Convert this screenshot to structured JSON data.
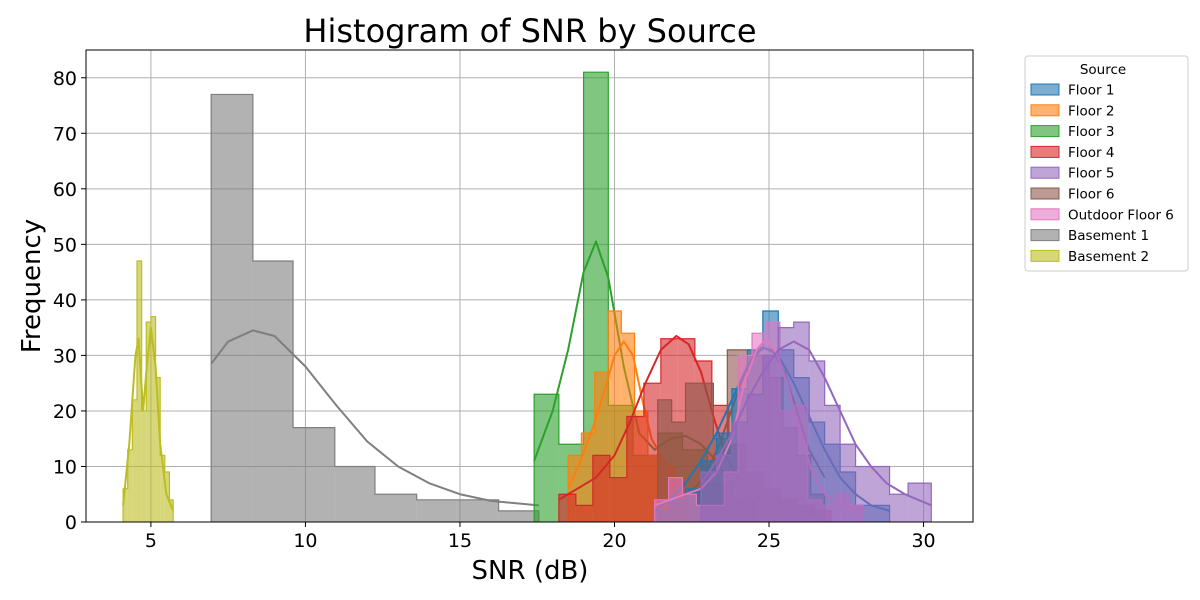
{
  "chart_data": {
    "type": "histogram",
    "title": "Histogram of SNR by Source",
    "xlabel": "SNR (dB)",
    "ylabel": "Frequency",
    "xlim": [
      2.9,
      31.6
    ],
    "ylim": [
      0,
      85
    ],
    "xticks": [
      5,
      10,
      15,
      20,
      25,
      30
    ],
    "yticks": [
      0,
      10,
      20,
      30,
      40,
      50,
      60,
      70,
      80
    ],
    "grid": true,
    "legend": {
      "title": "Source",
      "placement": "outside-top-right"
    },
    "series": [
      {
        "name": "Basement 2",
        "color": "#bcbd22",
        "edges": [
          4.1,
          4.25,
          4.4,
          4.55,
          4.7,
          4.85,
          5.0,
          5.15,
          5.3,
          5.45,
          5.6,
          5.72
        ],
        "counts": [
          6,
          13,
          22,
          47,
          20,
          36,
          37,
          26,
          12,
          9,
          4
        ],
        "kde": [
          [
            4.1,
            3
          ],
          [
            4.3,
            14
          ],
          [
            4.5,
            30
          ],
          [
            4.6,
            33
          ],
          [
            4.75,
            20
          ],
          [
            4.85,
            27
          ],
          [
            5.0,
            35
          ],
          [
            5.15,
            28
          ],
          [
            5.3,
            14
          ],
          [
            5.5,
            5
          ],
          [
            5.72,
            2
          ]
        ]
      },
      {
        "name": "Basement 1",
        "color": "#7f7f7f",
        "edges": [
          6.95,
          8.3,
          9.6,
          10.95,
          12.25,
          13.6,
          14.9,
          16.25,
          17.55
        ],
        "counts": [
          77,
          47,
          17,
          10,
          5,
          4,
          4,
          2
        ],
        "kde": [
          [
            6.95,
            28.5
          ],
          [
            7.5,
            32.5
          ],
          [
            8.3,
            34.5
          ],
          [
            9.0,
            33.5
          ],
          [
            10.0,
            28
          ],
          [
            11.0,
            21
          ],
          [
            12.0,
            14.5
          ],
          [
            13.0,
            10
          ],
          [
            14.0,
            7
          ],
          [
            15.0,
            5
          ],
          [
            16.0,
            3.8
          ],
          [
            17.55,
            3
          ]
        ]
      },
      {
        "name": "Floor 3",
        "color": "#2ca02c",
        "edges": [
          17.4,
          18.2,
          19.0,
          19.8,
          20.6,
          21.4,
          22.2,
          23.0,
          23.8,
          24.6
        ],
        "counts": [
          23,
          14,
          81,
          21,
          12,
          16,
          13,
          7,
          4
        ],
        "kde": [
          [
            17.4,
            11
          ],
          [
            18.0,
            20
          ],
          [
            18.5,
            31
          ],
          [
            19.0,
            45
          ],
          [
            19.4,
            50.5
          ],
          [
            19.8,
            44
          ],
          [
            20.3,
            28
          ],
          [
            20.8,
            16
          ],
          [
            21.3,
            13
          ],
          [
            21.8,
            15
          ],
          [
            22.3,
            15.5
          ],
          [
            22.8,
            14
          ],
          [
            23.3,
            11
          ],
          [
            23.8,
            7
          ],
          [
            24.3,
            4
          ],
          [
            24.6,
            3
          ]
        ]
      },
      {
        "name": "Floor 2",
        "color": "#ff7f0e",
        "edges": [
          18.5,
          18.93,
          19.36,
          19.79,
          20.22,
          20.65,
          21.08,
          21.51,
          21.94,
          22.37
        ],
        "counts": [
          12,
          16,
          27,
          38,
          34,
          20,
          12,
          10,
          5
        ],
        "kde": [
          [
            18.5,
            6
          ],
          [
            18.9,
            11
          ],
          [
            19.3,
            17
          ],
          [
            19.7,
            24
          ],
          [
            20.0,
            30
          ],
          [
            20.3,
            32.5
          ],
          [
            20.6,
            30
          ],
          [
            20.9,
            22
          ],
          [
            21.2,
            15
          ],
          [
            21.6,
            11
          ],
          [
            22.0,
            7
          ],
          [
            22.37,
            4
          ]
        ]
      },
      {
        "name": "Floor 4",
        "color": "#d62728",
        "edges": [
          18.2,
          18.75,
          19.3,
          19.85,
          20.4,
          20.95,
          21.5,
          22.05,
          22.6,
          23.15,
          23.7,
          24.25,
          24.8,
          25.35,
          25.9,
          26.45,
          27.0
        ],
        "counts": [
          5,
          3,
          12,
          8,
          19,
          25,
          33,
          33,
          29,
          21,
          14,
          9,
          6,
          4,
          3,
          2
        ],
        "kde": [
          [
            18.2,
            4
          ],
          [
            18.8,
            6
          ],
          [
            19.4,
            8
          ],
          [
            20.0,
            12
          ],
          [
            20.5,
            18
          ],
          [
            21.0,
            25
          ],
          [
            21.5,
            31
          ],
          [
            22.0,
            33.5
          ],
          [
            22.4,
            32
          ],
          [
            22.8,
            27
          ],
          [
            23.2,
            19
          ],
          [
            23.6,
            12
          ],
          [
            24.0,
            8
          ],
          [
            24.5,
            5
          ],
          [
            25.2,
            3
          ],
          [
            26.0,
            2
          ],
          [
            26.8,
            1
          ]
        ]
      },
      {
        "name": "Floor 6",
        "color": "#8c564b",
        "edges": [
          21.4,
          21.85,
          22.3,
          22.75,
          23.2,
          23.65,
          24.1,
          24.55,
          25.0,
          25.45,
          25.9,
          26.35,
          26.8
        ],
        "counts": [
          22,
          18,
          25,
          25,
          15,
          31,
          31,
          30,
          26,
          17,
          12,
          5
        ],
        "kde": [
          [
            21.4,
            3
          ],
          [
            21.9,
            4
          ],
          [
            22.4,
            5
          ],
          [
            22.9,
            8
          ],
          [
            23.4,
            14
          ],
          [
            23.9,
            22
          ],
          [
            24.3,
            28
          ],
          [
            24.7,
            31.5
          ],
          [
            25.1,
            31
          ],
          [
            25.5,
            27
          ],
          [
            25.9,
            20
          ],
          [
            26.3,
            13
          ],
          [
            26.8,
            8
          ]
        ]
      },
      {
        "name": "Floor 1",
        "color": "#1f77b4",
        "edges": [
          21.3,
          21.8,
          22.3,
          22.8,
          23.3,
          23.8,
          24.3,
          24.8,
          25.3,
          25.8,
          26.3,
          26.8,
          27.3,
          27.8,
          28.3,
          28.9
        ],
        "counts": [
          2,
          4,
          6,
          11,
          16,
          24,
          31,
          38,
          31,
          26,
          18,
          14,
          9,
          3,
          3
        ],
        "kde": [
          [
            21.3,
            2
          ],
          [
            21.8,
            4
          ],
          [
            22.3,
            7
          ],
          [
            22.8,
            11
          ],
          [
            23.3,
            16
          ],
          [
            23.8,
            22
          ],
          [
            24.3,
            28
          ],
          [
            24.8,
            31.5
          ],
          [
            25.3,
            30
          ],
          [
            25.8,
            25
          ],
          [
            26.3,
            19
          ],
          [
            26.8,
            13
          ],
          [
            27.3,
            8
          ],
          [
            27.8,
            5
          ],
          [
            28.3,
            3
          ],
          [
            28.9,
            2
          ]
        ]
      },
      {
        "name": "Outdoor Floor 6",
        "color": "#e377c2",
        "edges": [
          21.3,
          21.75,
          22.2,
          22.65,
          23.1,
          23.55,
          24.0,
          24.45,
          24.9,
          25.35,
          25.8,
          26.25,
          26.7,
          27.15,
          27.6,
          28.05
        ],
        "counts": [
          4,
          8,
          5,
          3,
          3,
          9,
          30,
          34,
          36,
          20,
          21,
          4,
          3,
          5,
          3
        ],
        "kde": [
          [
            21.3,
            3
          ],
          [
            21.8,
            4
          ],
          [
            22.3,
            5
          ],
          [
            22.8,
            6
          ],
          [
            23.3,
            9
          ],
          [
            23.8,
            15
          ],
          [
            24.2,
            25
          ],
          [
            24.6,
            31
          ],
          [
            24.9,
            33
          ],
          [
            25.2,
            31
          ],
          [
            25.6,
            25
          ],
          [
            26.0,
            16
          ],
          [
            26.4,
            9
          ],
          [
            26.8,
            5
          ],
          [
            27.3,
            3
          ],
          [
            28.05,
            2
          ]
        ]
      },
      {
        "name": "Floor 5",
        "color": "#9467bd",
        "edges": [
          22.8,
          23.3,
          23.8,
          24.3,
          24.8,
          25.3,
          25.8,
          26.3,
          26.8,
          27.3,
          27.8,
          28.3,
          28.9,
          29.5,
          30.25
        ],
        "counts": [
          9,
          12,
          18,
          23,
          30,
          35,
          36,
          29,
          21,
          14,
          10,
          10,
          5,
          7
        ],
        "kde": [
          [
            22.8,
            7
          ],
          [
            23.3,
            11
          ],
          [
            23.8,
            16
          ],
          [
            24.3,
            22
          ],
          [
            24.8,
            27
          ],
          [
            25.3,
            31
          ],
          [
            25.8,
            32.5
          ],
          [
            26.3,
            31
          ],
          [
            26.8,
            26
          ],
          [
            27.3,
            20
          ],
          [
            27.8,
            14
          ],
          [
            28.3,
            10
          ],
          [
            28.8,
            7
          ],
          [
            29.4,
            5
          ],
          [
            30.25,
            3
          ]
        ]
      }
    ],
    "legend_order": [
      "Floor 1",
      "Floor 2",
      "Floor 3",
      "Floor 4",
      "Floor 5",
      "Floor 6",
      "Outdoor Floor 6",
      "Basement 1",
      "Basement 2"
    ]
  }
}
